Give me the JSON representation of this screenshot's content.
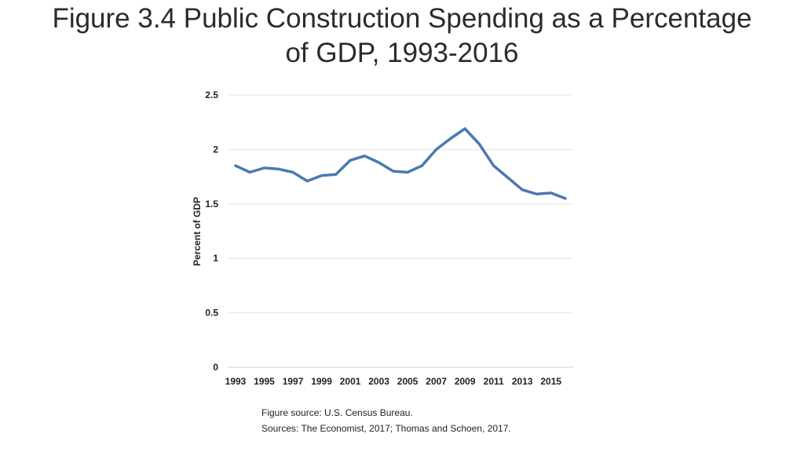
{
  "title_line1": "Figure 3.4 Public Construction Spending as a Percentage",
  "title_line2": "of GDP, 1993-2016",
  "chart_data": {
    "type": "line",
    "title": "Figure 3.4 Public Construction Spending as a Percentage of GDP, 1993-2016",
    "xlabel": "",
    "ylabel": "Percent of GDP",
    "x": [
      1993,
      1994,
      1995,
      1996,
      1997,
      1998,
      1999,
      2000,
      2001,
      2002,
      2003,
      2004,
      2005,
      2006,
      2007,
      2008,
      2009,
      2010,
      2011,
      2012,
      2013,
      2014,
      2015,
      2016
    ],
    "x_ticks": [
      "1993",
      "1995",
      "1997",
      "1999",
      "2001",
      "2003",
      "2005",
      "2007",
      "2009",
      "2011",
      "2013",
      "2015"
    ],
    "y_ticks": [
      "0",
      "0.5",
      "1",
      "1.5",
      "2",
      "2.5"
    ],
    "ylim": [
      0,
      2.5
    ],
    "grid": true,
    "series": [
      {
        "name": "Public construction spending (% of GDP)",
        "color": "#4a7ab0",
        "values": [
          1.85,
          1.79,
          1.83,
          1.82,
          1.79,
          1.71,
          1.76,
          1.77,
          1.9,
          1.94,
          1.88,
          1.8,
          1.79,
          1.85,
          2.0,
          2.1,
          2.19,
          2.05,
          1.85,
          1.74,
          1.63,
          1.59,
          1.6,
          1.55
        ]
      }
    ]
  },
  "footer": {
    "source_line": "Figure source: U.S. Census Bureau.",
    "sources_line": "Sources: The Economist, 2017; Thomas and Schoen, 2017."
  }
}
